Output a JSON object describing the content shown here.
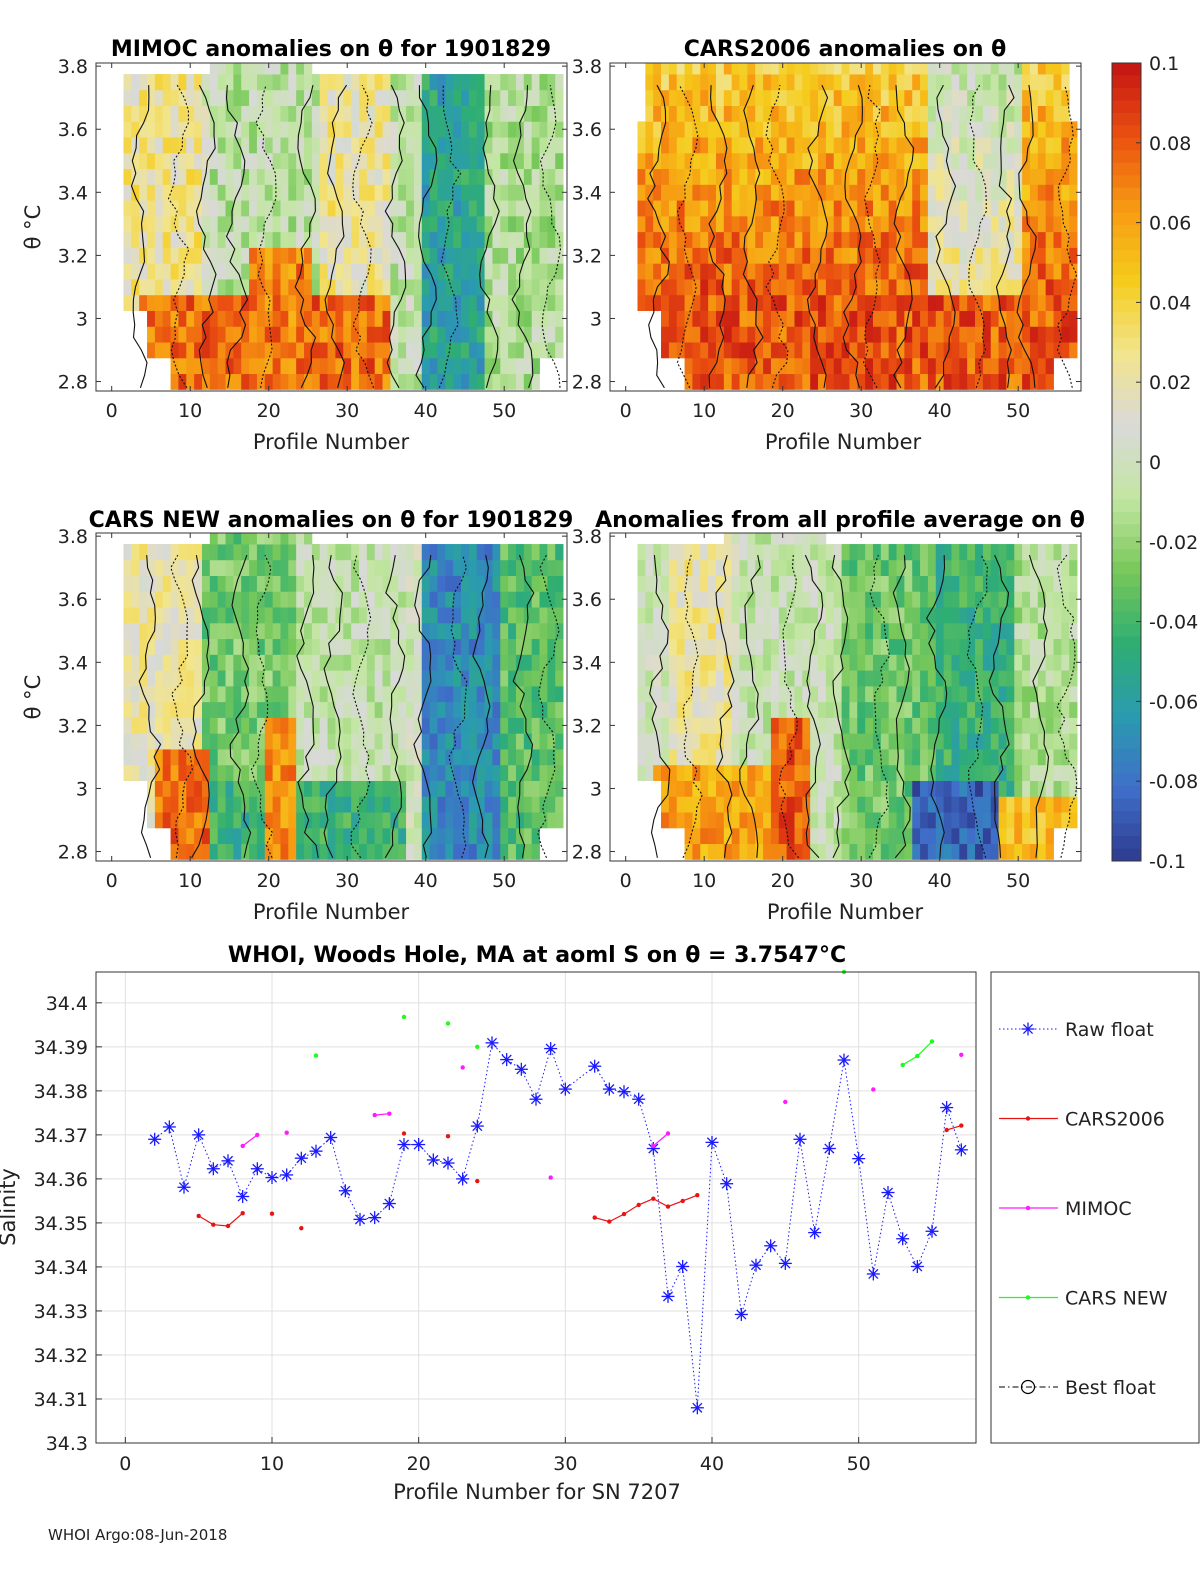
{
  "footer": "WHOI Argo:08-Jun-2018",
  "panels": [
    {
      "title": "MIMOC anomalies on θ  for 1901829",
      "xlabel": "Profile Number",
      "ylabel": "θ °C",
      "pattern": "mimoc"
    },
    {
      "title": "CARS2006 anomalies on θ",
      "xlabel": "Profile Number",
      "ylabel": "",
      "pattern": "cars2006"
    },
    {
      "title": "CARS NEW anomalies on θ for 1901829",
      "xlabel": "Profile Number",
      "ylabel": "θ °C",
      "pattern": "carsnew"
    },
    {
      "title": "Anomalies from all profile average on θ",
      "xlabel": "Profile Number",
      "ylabel": "",
      "pattern": "average"
    }
  ],
  "heatmap_axes": {
    "xticks": [
      0,
      10,
      20,
      30,
      40,
      50
    ],
    "xlim": [
      -2,
      58
    ],
    "yticks": [
      2.8,
      3,
      3.2,
      3.4,
      3.6,
      3.8
    ],
    "ylim": [
      2.77,
      3.81
    ]
  },
  "colorbar": {
    "ticks": [
      "0.1",
      "0.08",
      "0.06",
      "0.04",
      "0.02",
      "0",
      "-0.02",
      "-0.04",
      "-0.06",
      "-0.08",
      "-0.1"
    ],
    "min": -0.1,
    "max": 0.1,
    "colors": [
      "#2e3b8f",
      "#3f6fc9",
      "#2a9bb0",
      "#2fae72",
      "#78c85a",
      "#c3e6a2",
      "#d9d9d9",
      "#f2e58c",
      "#f5cc1c",
      "#f79a12",
      "#ea4f10",
      "#c41414"
    ]
  },
  "chart_data": {
    "type": "line",
    "title": "WHOI, Woods Hole, MA at aoml S on θ = 3.7547°C",
    "xlabel": "Profile Number for SN 7207",
    "ylabel": "Salinity",
    "xlim": [
      -2,
      58
    ],
    "ylim": [
      34.3,
      34.407
    ],
    "xticks": [
      0,
      10,
      20,
      30,
      40,
      50
    ],
    "yticks": [
      34.3,
      34.31,
      34.32,
      34.33,
      34.34,
      34.35,
      34.36,
      34.37,
      34.38,
      34.39,
      34.4
    ],
    "series": [
      {
        "name": "Raw float",
        "color": "#1a1aff",
        "style": "raw",
        "points": [
          [
            2,
            34.369
          ],
          [
            3,
            34.3718
          ],
          [
            4,
            34.3581
          ],
          [
            5,
            34.37
          ],
          [
            6,
            34.3623
          ],
          [
            7,
            34.3641
          ],
          [
            8,
            34.356
          ],
          [
            9,
            34.3623
          ],
          [
            10,
            34.3603
          ],
          [
            11,
            34.3609
          ],
          [
            12,
            34.3647
          ],
          [
            13,
            34.3663
          ],
          [
            14,
            34.3694
          ],
          [
            15,
            34.3573
          ],
          [
            16,
            34.3508
          ],
          [
            17,
            34.3512
          ],
          [
            18,
            34.3544
          ],
          [
            19,
            34.3678
          ],
          [
            20,
            34.3678
          ],
          [
            21,
            34.3643
          ],
          [
            22,
            34.3636
          ],
          [
            23,
            34.36
          ],
          [
            24,
            34.372
          ],
          [
            25,
            34.3909
          ],
          [
            26,
            34.3871
          ],
          [
            27,
            34.3849
          ],
          [
            28,
            34.3781
          ],
          [
            29,
            34.3896
          ],
          [
            30,
            34.3804
          ],
          [
            32,
            34.3856
          ],
          [
            33,
            34.3804
          ],
          [
            34,
            34.3798
          ],
          [
            35,
            34.3781
          ],
          [
            36,
            34.3669
          ],
          [
            37,
            34.3333
          ],
          [
            38,
            34.3401
          ],
          [
            39,
            34.308
          ],
          [
            40,
            34.3683
          ],
          [
            41,
            34.3589
          ],
          [
            42,
            34.3292
          ],
          [
            43,
            34.3404
          ],
          [
            44,
            34.3448
          ],
          [
            45,
            34.3408
          ],
          [
            46,
            34.369
          ],
          [
            47,
            34.3478
          ],
          [
            48,
            34.3669
          ],
          [
            49,
            34.387
          ],
          [
            50,
            34.3646
          ],
          [
            51,
            34.3384
          ],
          [
            52,
            34.3569
          ],
          [
            53,
            34.3464
          ],
          [
            54,
            34.3401
          ],
          [
            55,
            34.3481
          ],
          [
            56,
            34.3762
          ],
          [
            57,
            34.3666
          ]
        ]
      },
      {
        "name": "CARS2006",
        "color": "#e81414",
        "style": "dotline",
        "segments": [
          [
            [
              5,
              34.3516
            ],
            [
              6,
              34.3496
            ],
            [
              7,
              34.3493
            ],
            [
              8,
              34.3522
            ]
          ],
          [
            [
              10,
              34.3521
            ]
          ],
          [
            [
              12,
              34.3488
            ]
          ],
          [
            [
              19,
              34.3703
            ]
          ],
          [
            [
              22,
              34.3697
            ]
          ],
          [
            [
              24,
              34.3595
            ]
          ],
          [
            [
              32,
              34.3512
            ],
            [
              33,
              34.3503
            ],
            [
              34,
              34.352
            ],
            [
              35,
              34.3541
            ],
            [
              36,
              34.3555
            ],
            [
              37,
              34.3537
            ],
            [
              38,
              34.355
            ],
            [
              39,
              34.3563
            ]
          ],
          [
            [
              56,
              34.3711
            ],
            [
              57,
              34.3721
            ]
          ]
        ]
      },
      {
        "name": "MIMOC",
        "color": "#ff1aff",
        "style": "dotline",
        "segments": [
          [
            [
              8,
              34.3675
            ],
            [
              9,
              34.37
            ]
          ],
          [
            [
              11,
              34.3705
            ]
          ],
          [
            [
              17,
              34.3745
            ],
            [
              18,
              34.3748
            ]
          ],
          [
            [
              23,
              34.3853
            ]
          ],
          [
            [
              29,
              34.3603
            ]
          ],
          [
            [
              36,
              34.3675
            ],
            [
              37,
              34.3703
            ]
          ],
          [
            [
              45,
              34.3775
            ]
          ],
          [
            [
              51,
              34.3803
            ]
          ],
          [
            [
              57,
              34.3882
            ]
          ]
        ]
      },
      {
        "name": "CARS NEW",
        "color": "#1aff1a",
        "style": "dotline",
        "segments": [
          [
            [
              13,
              34.388
            ]
          ],
          [
            [
              19,
              34.3968
            ]
          ],
          [
            [
              22,
              34.3953
            ]
          ],
          [
            [
              24,
              34.39
            ]
          ],
          [
            [
              49,
              34.407
            ]
          ],
          [
            [
              53,
              34.3859
            ],
            [
              54,
              34.3879
            ],
            [
              55,
              34.3912
            ]
          ]
        ]
      },
      {
        "name": "Best float",
        "color": "#000000",
        "style": "best",
        "segments": []
      }
    ]
  }
}
